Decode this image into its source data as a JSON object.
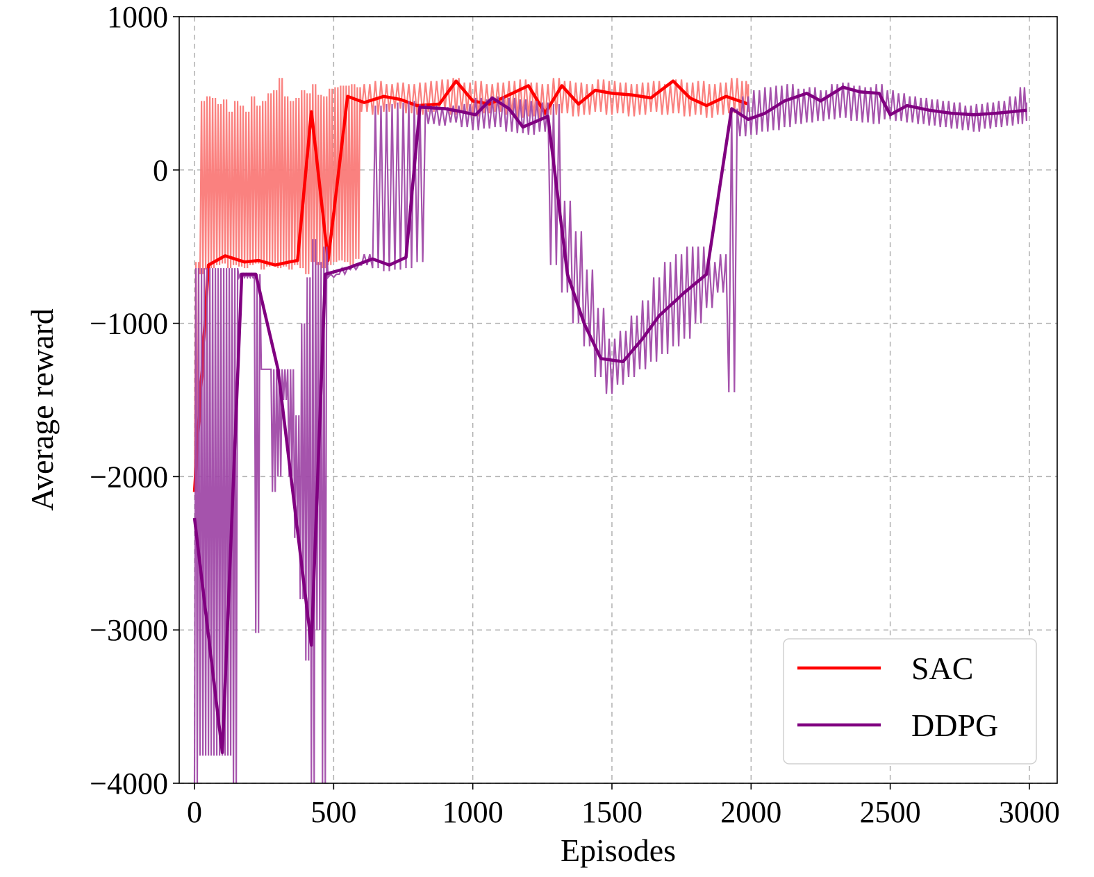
{
  "chart_data": {
    "type": "line",
    "xlabel": "Episodes",
    "ylabel": "Average reward",
    "xlim": [
      -55,
      3100
    ],
    "ylim": [
      -4000,
      1000
    ],
    "xticks": [
      0,
      500,
      1000,
      1500,
      2000,
      2500,
      3000
    ],
    "xtick_labels": [
      "0",
      "500",
      "1000",
      "1500",
      "2000",
      "2500",
      "3000"
    ],
    "yticks": [
      1000,
      0,
      -1000,
      -2000,
      -3000,
      -4000
    ],
    "ytick_labels": [
      "1000",
      "0",
      "−1000",
      "−2000",
      "−3000",
      "−4000"
    ],
    "grid": true,
    "legend_position": "lower-right",
    "series": [
      {
        "name": "SAC",
        "color": "#ff0000",
        "raw_color": "#fa7a78",
        "x": [
          0,
          50,
          110,
          180,
          230,
          290,
          340,
          370,
          420,
          480,
          550,
          610,
          680,
          740,
          800,
          880,
          940,
          1000,
          1060,
          1130,
          1200,
          1260,
          1320,
          1380,
          1440,
          1500,
          1570,
          1640,
          1720,
          1780,
          1840,
          1910,
          1990
        ],
        "values": [
          -2100,
          -620,
          -560,
          -600,
          -590,
          -620,
          -600,
          -590,
          380,
          -590,
          480,
          440,
          480,
          460,
          420,
          430,
          580,
          450,
          430,
          490,
          550,
          370,
          550,
          430,
          520,
          500,
          490,
          470,
          580,
          470,
          420,
          480,
          430
        ],
        "raw_x": [
          0,
          20,
          40,
          60,
          80,
          100,
          120,
          140,
          160,
          180,
          200,
          220,
          240,
          260,
          280,
          300,
          320,
          340,
          360,
          380,
          400,
          420,
          440,
          460,
          480,
          500,
          520,
          540,
          560,
          580,
          600,
          640,
          680,
          720,
          760,
          800,
          840,
          880,
          920,
          960,
          1000,
          1040,
          1080,
          1120,
          1160,
          1200,
          1240,
          1280,
          1320,
          1360,
          1400,
          1440,
          1480,
          1520,
          1560,
          1600,
          1640,
          1680,
          1720,
          1760,
          1800,
          1840,
          1880,
          1920,
          1960,
          1990
        ],
        "raw_min": [
          -2100,
          -680,
          -650,
          -640,
          -620,
          -610,
          -640,
          -620,
          -630,
          -640,
          -620,
          -610,
          -650,
          -630,
          -620,
          -640,
          -630,
          -650,
          -620,
          -640,
          -680,
          -600,
          -620,
          -640,
          -620,
          -600,
          -590,
          -600,
          -620,
          -580,
          380,
          360,
          380,
          400,
          370,
          360,
          380,
          390,
          360,
          380,
          350,
          370,
          380,
          360,
          340,
          350,
          330,
          360,
          370,
          350,
          360,
          380,
          360,
          370,
          350,
          360,
          380,
          360,
          370,
          350,
          360,
          340,
          360,
          370,
          350,
          380
        ],
        "raw_max": [
          -600,
          450,
          480,
          470,
          430,
          460,
          380,
          450,
          420,
          380,
          480,
          420,
          450,
          500,
          520,
          600,
          480,
          450,
          470,
          520,
          500,
          560,
          490,
          480,
          530,
          540,
          550,
          550,
          560,
          540,
          560,
          580,
          560,
          570,
          560,
          570,
          580,
          590,
          600,
          570,
          580,
          560,
          570,
          580,
          590,
          570,
          560,
          600,
          580,
          570,
          560,
          590,
          580,
          570,
          560,
          570,
          580,
          560,
          590,
          570,
          580,
          560,
          570,
          600,
          580,
          560
        ]
      },
      {
        "name": "DDPG",
        "color": "#800080",
        "raw_color": "#a04aa8",
        "x": [
          0,
          100,
          170,
          220,
          300,
          420,
          470,
          550,
          640,
          700,
          760,
          810,
          900,
          960,
          1010,
          1070,
          1130,
          1180,
          1270,
          1340,
          1400,
          1460,
          1540,
          1610,
          1670,
          1760,
          1840,
          1930,
          1990,
          2050,
          2120,
          2200,
          2250,
          2330,
          2390,
          2460,
          2500,
          2560,
          2640,
          2720,
          2800,
          2880,
          2990
        ],
        "values": [
          -2270,
          -3800,
          -680,
          -680,
          -1300,
          -3100,
          -680,
          -640,
          -580,
          -620,
          -570,
          410,
          400,
          380,
          360,
          470,
          400,
          280,
          350,
          -680,
          -1000,
          -1230,
          -1250,
          -1100,
          -950,
          -800,
          -680,
          400,
          330,
          370,
          450,
          500,
          450,
          540,
          510,
          500,
          360,
          420,
          390,
          370,
          360,
          370,
          390
        ],
        "raw_x": [
          0,
          20,
          40,
          60,
          80,
          100,
          120,
          140,
          160,
          180,
          200,
          220,
          240,
          260,
          280,
          300,
          320,
          340,
          360,
          380,
          400,
          420,
          440,
          460,
          480,
          520,
          560,
          600,
          640,
          680,
          720,
          760,
          800,
          840,
          880,
          920,
          960,
          1000,
          1040,
          1080,
          1120,
          1160,
          1200,
          1240,
          1280,
          1320,
          1360,
          1400,
          1440,
          1480,
          1520,
          1560,
          1600,
          1640,
          1680,
          1720,
          1760,
          1800,
          1840,
          1880,
          1920,
          1960,
          2000,
          2040,
          2080,
          2120,
          2160,
          2200,
          2240,
          2280,
          2320,
          2360,
          2400,
          2440,
          2480,
          2520,
          2560,
          2600,
          2640,
          2680,
          2720,
          2760,
          2800,
          2840,
          2880,
          2920,
          2960,
          2990
        ],
        "raw_min": [
          -4000,
          -3820,
          -3820,
          -3820,
          -3820,
          -3820,
          -3820,
          -4000,
          -700,
          -700,
          -700,
          -3020,
          -1300,
          -1300,
          -2100,
          -2000,
          -1500,
          -2000,
          -2400,
          -2800,
          -3200,
          -4000,
          -3000,
          -4000,
          -700,
          -680,
          -650,
          -620,
          -640,
          -660,
          -650,
          -640,
          -600,
          300,
          290,
          310,
          280,
          260,
          270,
          280,
          250,
          240,
          230,
          250,
          -620,
          -800,
          -1000,
          -1150,
          -1350,
          -1460,
          -1400,
          -1350,
          -1300,
          -1250,
          -1200,
          -1150,
          -1100,
          -1000,
          -900,
          -800,
          -1450,
          220,
          230,
          250,
          260,
          280,
          300,
          310,
          320,
          330,
          340,
          320,
          310,
          300,
          330,
          320,
          310,
          300,
          290,
          280,
          270,
          260,
          250,
          270,
          280,
          290,
          300,
          320
        ],
        "raw_max": [
          -640,
          -640,
          -640,
          -640,
          -640,
          -640,
          -640,
          -640,
          -680,
          -680,
          -680,
          -680,
          -1300,
          -1300,
          -1300,
          -1300,
          -1300,
          -1300,
          -1600,
          -1000,
          -700,
          -450,
          -600,
          -500,
          -680,
          -640,
          -620,
          -550,
          420,
          430,
          440,
          450,
          430,
          420,
          410,
          420,
          430,
          470,
          460,
          480,
          470,
          460,
          450,
          440,
          430,
          -200,
          -400,
          -650,
          -900,
          -1100,
          -1050,
          -950,
          -850,
          -700,
          -600,
          -550,
          -500,
          -500,
          -600,
          -550,
          400,
          480,
          520,
          540,
          550,
          560,
          530,
          540,
          520,
          560,
          570,
          550,
          540,
          560,
          520,
          500,
          480,
          470,
          460,
          450,
          440,
          420,
          430,
          440,
          450,
          480,
          540,
          440
        ]
      }
    ]
  }
}
